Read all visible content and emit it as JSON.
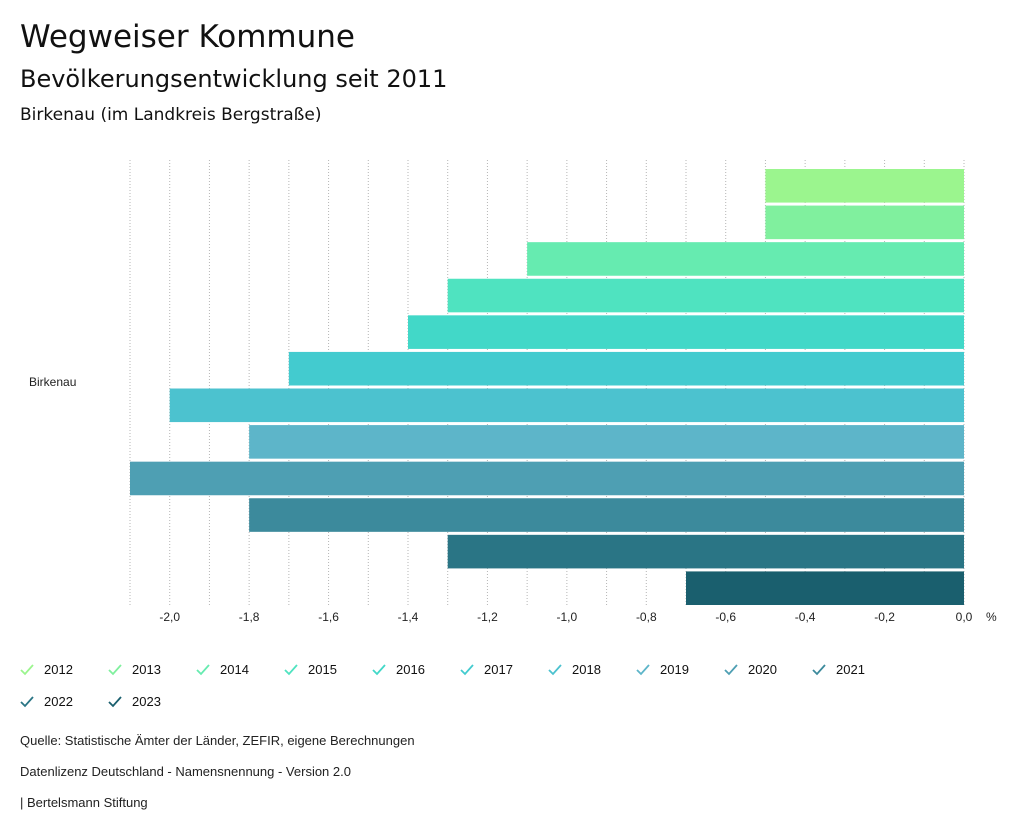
{
  "header": {
    "title": "Wegweiser Kommune",
    "subtitle": "Bevölkerungsentwicklung seit 2011",
    "region": "Birkenau (im Landkreis Bergstraße)"
  },
  "chart_data": {
    "type": "bar",
    "orientation": "horizontal",
    "categories": [
      "Birkenau"
    ],
    "series": [
      {
        "name": "2012",
        "values": [
          -0.5
        ],
        "color": "#9bf58e"
      },
      {
        "name": "2013",
        "values": [
          -0.5
        ],
        "color": "#80f09e"
      },
      {
        "name": "2014",
        "values": [
          -1.1
        ],
        "color": "#66ebb0"
      },
      {
        "name": "2015",
        "values": [
          -1.3
        ],
        "color": "#4fe3c0"
      },
      {
        "name": "2016",
        "values": [
          -1.4
        ],
        "color": "#42d8c8"
      },
      {
        "name": "2017",
        "values": [
          -1.7
        ],
        "color": "#43cbcf"
      },
      {
        "name": "2018",
        "values": [
          -2.0
        ],
        "color": "#4cc2cf"
      },
      {
        "name": "2019",
        "values": [
          -1.8
        ],
        "color": "#5db5c9"
      },
      {
        "name": "2020",
        "values": [
          -2.1
        ],
        "color": "#4e9fb3"
      },
      {
        "name": "2021",
        "values": [
          -1.8
        ],
        "color": "#3c8a9c"
      },
      {
        "name": "2022",
        "values": [
          -1.3
        ],
        "color": "#2a7585"
      },
      {
        "name": "2023",
        "values": [
          -0.7
        ],
        "color": "#1a5f6e"
      }
    ],
    "xlim": [
      -2.1,
      0.0
    ],
    "ticks": [
      -2.0,
      -1.8,
      -1.6,
      -1.4,
      -1.2,
      -1.0,
      -0.8,
      -0.6,
      -0.4,
      -0.2,
      0.0
    ],
    "tick_labels": [
      "-2,0",
      "-1,8",
      "-1,6",
      "-1,4",
      "-1,2",
      "-1,0",
      "-0,8",
      "-0,6",
      "-0,4",
      "-0,2",
      "0,0"
    ],
    "unit_label": "%",
    "grid": true
  },
  "footer": {
    "source": "Quelle: Statistische Ämter der Länder, ZEFIR, eigene Berechnungen",
    "license": "Datenlizenz Deutschland - Namensnennung - Version 2.0",
    "publisher": "| Bertelsmann Stiftung"
  }
}
